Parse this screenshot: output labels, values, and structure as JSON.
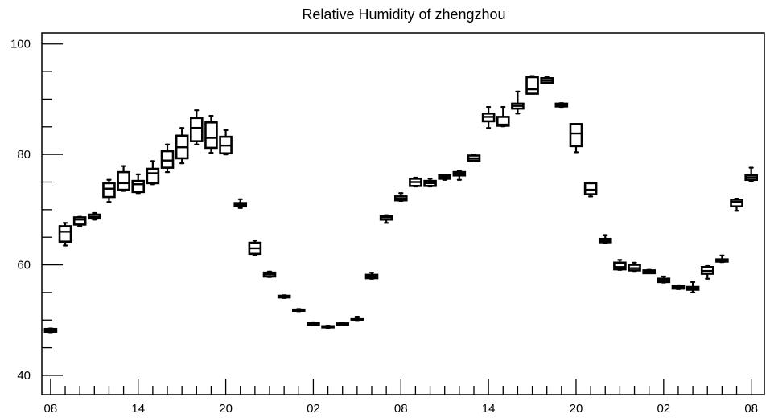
{
  "chart_data": {
    "type": "box",
    "title": "Relative Humidity of zhengzhou",
    "xlabel": "",
    "ylabel": "",
    "ylim": [
      36.5,
      102
    ],
    "y_ticks": [
      40,
      60,
      80,
      100
    ],
    "x_tick_labels": [
      "08",
      "14",
      "20",
      "02",
      "08",
      "14",
      "20",
      "02",
      "08"
    ],
    "x_tick_label_hours": [
      0,
      6,
      12,
      18,
      24,
      30,
      36,
      42,
      48
    ],
    "x_range_hours": [
      -0.6,
      48.9
    ],
    "grid": false,
    "boxes": [
      {
        "hour": 0,
        "min": 47.8,
        "q1": 47.9,
        "median": 48.1,
        "q3": 48.4,
        "max": 48.5
      },
      {
        "hour": 1,
        "min": 63.5,
        "q1": 64.2,
        "median": 66.0,
        "q3": 67.0,
        "max": 67.6
      },
      {
        "hour": 2,
        "min": 67.0,
        "q1": 67.3,
        "median": 68.2,
        "q3": 68.6,
        "max": 68.7
      },
      {
        "hour": 3,
        "min": 68.2,
        "q1": 68.4,
        "median": 68.7,
        "q3": 69.1,
        "max": 69.4
      },
      {
        "hour": 4,
        "min": 71.4,
        "q1": 72.3,
        "median": 73.8,
        "q3": 74.8,
        "max": 75.4
      },
      {
        "hour": 5,
        "min": 73.4,
        "q1": 73.6,
        "median": 74.8,
        "q3": 76.8,
        "max": 77.9
      },
      {
        "hour": 6,
        "min": 73.0,
        "q1": 73.2,
        "median": 74.6,
        "q3": 75.2,
        "max": 76.4
      },
      {
        "hour": 7,
        "min": 74.6,
        "q1": 74.8,
        "median": 76.6,
        "q3": 77.4,
        "max": 78.8
      },
      {
        "hour": 8,
        "min": 76.8,
        "q1": 77.6,
        "median": 78.9,
        "q3": 80.6,
        "max": 81.8
      },
      {
        "hour": 9,
        "min": 78.4,
        "q1": 79.3,
        "median": 81.3,
        "q3": 83.4,
        "max": 84.8
      },
      {
        "hour": 10,
        "min": 81.8,
        "q1": 82.4,
        "median": 84.8,
        "q3": 86.6,
        "max": 88.0
      },
      {
        "hour": 11,
        "min": 80.3,
        "q1": 81.2,
        "median": 83.0,
        "q3": 85.8,
        "max": 87.0
      },
      {
        "hour": 12,
        "min": 80.0,
        "q1": 80.2,
        "median": 81.6,
        "q3": 83.2,
        "max": 84.4
      },
      {
        "hour": 13,
        "min": 70.3,
        "q1": 70.6,
        "median": 70.9,
        "q3": 71.2,
        "max": 71.9
      },
      {
        "hour": 14,
        "min": 61.8,
        "q1": 62.0,
        "median": 63.0,
        "q3": 64.0,
        "max": 64.4
      },
      {
        "hour": 15,
        "min": 57.8,
        "q1": 57.9,
        "median": 58.3,
        "q3": 58.6,
        "max": 58.8
      },
      {
        "hour": 16,
        "min": 54.0,
        "q1": 54.1,
        "median": 54.3,
        "q3": 54.4,
        "max": 54.5
      },
      {
        "hour": 17,
        "min": 51.6,
        "q1": 51.7,
        "median": 51.8,
        "q3": 51.9,
        "max": 52.0
      },
      {
        "hour": 18,
        "min": 49.1,
        "q1": 49.2,
        "median": 49.4,
        "q3": 49.5,
        "max": 49.6
      },
      {
        "hour": 19,
        "min": 48.6,
        "q1": 48.7,
        "median": 48.8,
        "q3": 48.9,
        "max": 49.0
      },
      {
        "hour": 20,
        "min": 49.1,
        "q1": 49.2,
        "median": 49.3,
        "q3": 49.4,
        "max": 49.5
      },
      {
        "hour": 21,
        "min": 50.0,
        "q1": 50.1,
        "median": 50.2,
        "q3": 50.3,
        "max": 50.6
      },
      {
        "hour": 22,
        "min": 57.5,
        "q1": 57.6,
        "median": 57.9,
        "q3": 58.2,
        "max": 58.6
      },
      {
        "hour": 23,
        "min": 67.6,
        "q1": 68.2,
        "median": 68.6,
        "q3": 68.9,
        "max": 69.0
      },
      {
        "hour": 24,
        "min": 71.6,
        "q1": 71.7,
        "median": 72.0,
        "q3": 72.4,
        "max": 73.0
      },
      {
        "hour": 25,
        "min": 74.2,
        "q1": 74.3,
        "median": 75.0,
        "q3": 75.6,
        "max": 75.8
      },
      {
        "hour": 26,
        "min": 74.2,
        "q1": 74.3,
        "median": 74.8,
        "q3": 75.2,
        "max": 75.6
      },
      {
        "hour": 27,
        "min": 75.4,
        "q1": 75.6,
        "median": 75.9,
        "q3": 76.2,
        "max": 76.3
      },
      {
        "hour": 28,
        "min": 75.4,
        "q1": 76.2,
        "median": 76.5,
        "q3": 76.8,
        "max": 77.0
      },
      {
        "hour": 29,
        "min": 78.8,
        "q1": 78.9,
        "median": 79.3,
        "q3": 79.8,
        "max": 80.0
      },
      {
        "hour": 30,
        "min": 84.8,
        "q1": 86.0,
        "median": 86.8,
        "q3": 87.4,
        "max": 88.6
      },
      {
        "hour": 31,
        "min": 85.1,
        "q1": 85.2,
        "median": 85.4,
        "q3": 86.8,
        "max": 88.6
      },
      {
        "hour": 32,
        "min": 87.4,
        "q1": 88.3,
        "median": 88.8,
        "q3": 89.2,
        "max": 91.4
      },
      {
        "hour": 33,
        "min": 91.0,
        "q1": 91.0,
        "median": 91.8,
        "q3": 94.0,
        "max": 94.2
      },
      {
        "hour": 34,
        "min": 92.9,
        "q1": 93.0,
        "median": 93.4,
        "q3": 93.8,
        "max": 94.0
      },
      {
        "hour": 35,
        "min": 88.6,
        "q1": 88.7,
        "median": 89.0,
        "q3": 89.2,
        "max": 89.3
      },
      {
        "hour": 36,
        "min": 80.4,
        "q1": 81.5,
        "median": 83.8,
        "q3": 85.5,
        "max": 85.5
      },
      {
        "hour": 37,
        "min": 72.4,
        "q1": 72.8,
        "median": 73.6,
        "q3": 74.8,
        "max": 74.9
      },
      {
        "hour": 38,
        "min": 64.0,
        "q1": 64.1,
        "median": 64.4,
        "q3": 64.7,
        "max": 65.4
      },
      {
        "hour": 39,
        "min": 59.1,
        "q1": 59.2,
        "median": 59.6,
        "q3": 60.4,
        "max": 60.9
      },
      {
        "hour": 40,
        "min": 58.9,
        "q1": 59.0,
        "median": 59.4,
        "q3": 60.0,
        "max": 60.4
      },
      {
        "hour": 41,
        "min": 58.5,
        "q1": 58.5,
        "median": 58.8,
        "q3": 59.0,
        "max": 59.1
      },
      {
        "hour": 42,
        "min": 56.8,
        "q1": 56.9,
        "median": 57.2,
        "q3": 57.5,
        "max": 57.9
      },
      {
        "hour": 43,
        "min": 55.6,
        "q1": 55.7,
        "median": 56.0,
        "q3": 56.2,
        "max": 56.3
      },
      {
        "hour": 44,
        "min": 55.0,
        "q1": 55.5,
        "median": 55.7,
        "q3": 56.0,
        "max": 56.9
      },
      {
        "hour": 45,
        "min": 57.5,
        "q1": 58.4,
        "median": 58.9,
        "q3": 59.6,
        "max": 59.8
      },
      {
        "hour": 46,
        "min": 60.5,
        "q1": 60.6,
        "median": 60.8,
        "q3": 61.0,
        "max": 61.7
      },
      {
        "hour": 47,
        "min": 69.8,
        "q1": 70.6,
        "median": 71.4,
        "q3": 71.8,
        "max": 72.0
      },
      {
        "hour": 48,
        "min": 75.2,
        "q1": 75.4,
        "median": 75.8,
        "q3": 76.2,
        "max": 77.6
      }
    ]
  }
}
